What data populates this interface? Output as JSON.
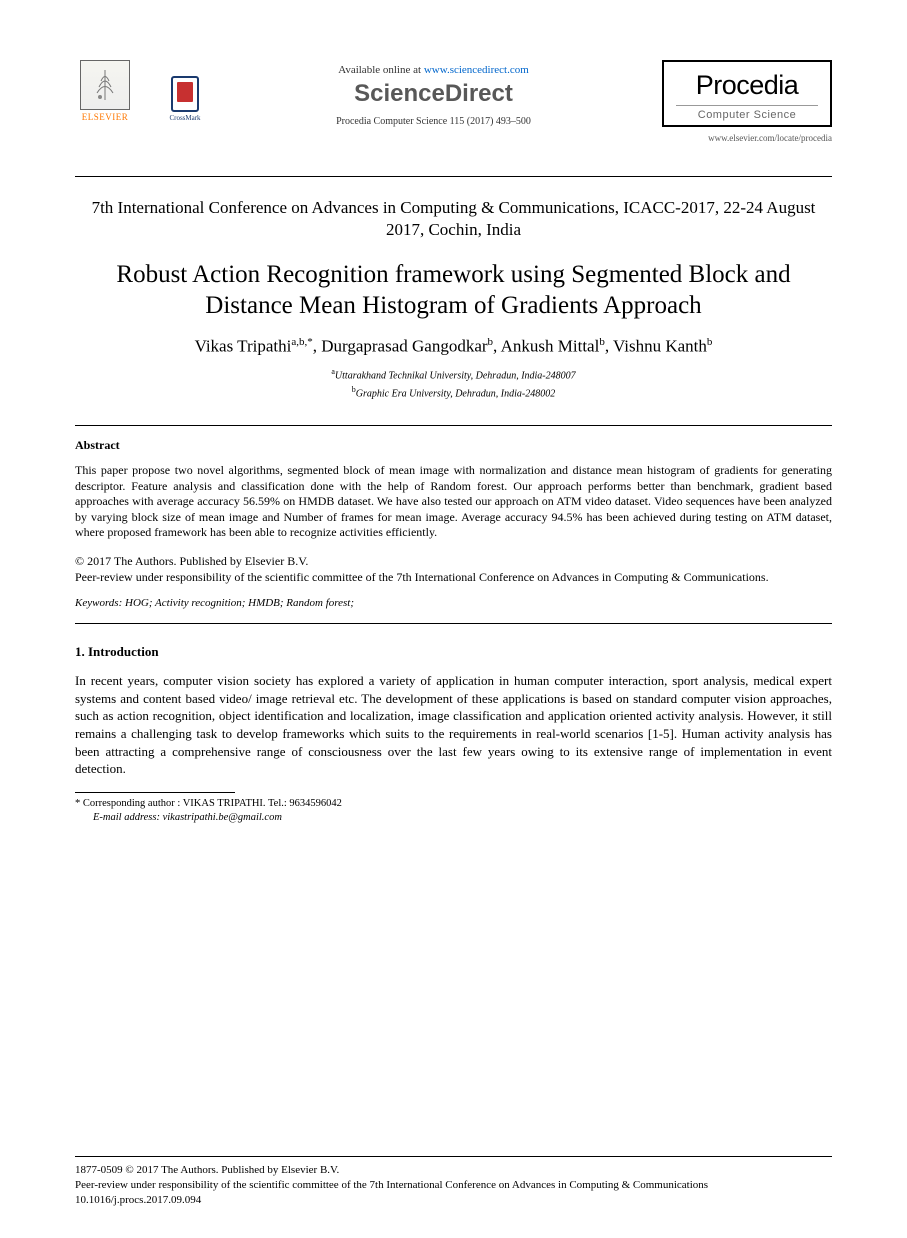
{
  "header": {
    "elsevier_label": "ELSEVIER",
    "crossmark_label": "CrossMark",
    "available_prefix": "Available online at ",
    "available_url": "www.sciencedirect.com",
    "sciencedirect": "ScienceDirect",
    "publication_line": "Procedia Computer Science 115 (2017) 493–500",
    "procedia_title": "Procedia",
    "procedia_subtitle": "Computer Science",
    "journal_url": "www.elsevier.com/locate/procedia"
  },
  "conference": "7th International Conference on Advances in Computing & Communications, ICACC-2017, 22-24 August 2017, Cochin, India",
  "title": "Robust Action Recognition framework using Segmented Block and Distance Mean Histogram of Gradients Approach",
  "authors_html": "Vikas Tripathi<sup>a,b,*</sup>, Durgaprasad Gangodkar<sup>b</sup>, Ankush Mittal<sup>b</sup>, Vishnu Kanth<sup>b</sup>",
  "affiliations": {
    "a": "Uttarakhand Technikal University, Dehradun, India-248007",
    "b": "Graphic Era University, Dehradun, India-248002"
  },
  "abstract": {
    "heading": "Abstract",
    "body": "This paper propose two novel algorithms, segmented block of mean image with normalization and distance mean histogram of gradients for generating descriptor. Feature analysis and classification done with the help of Random forest. Our approach performs better than benchmark, gradient based approaches with average accuracy 56.59% on HMDB dataset. We have also tested our approach on ATM video dataset. Video sequences have been analyzed by varying block size of mean image and Number of frames for mean image. Average accuracy 94.5% has been achieved during testing on ATM dataset, where proposed framework has been able to recognize activities efficiently."
  },
  "copyright": {
    "line1": "© 2017 The Authors. Published by Elsevier B.V.",
    "line2": "Peer-review under responsibility of the scientific committee of the 7th International Conference on Advances in Computing & Communications."
  },
  "keywords": {
    "label": "Keywords:",
    "text": "HOG; Activity recognition; HMDB; Random forest;"
  },
  "introduction": {
    "heading": "1. Introduction",
    "body": "In recent years, computer vision society has explored a variety of application in human computer interaction, sport analysis, medical expert systems and content based video/ image retrieval etc. The development of these applications is based on standard computer vision approaches, such as action recognition, object identification and localization, image classification and application oriented activity analysis. However, it still remains a challenging task to develop frameworks which suits to the requirements in real-world scenarios [1-5]. Human activity analysis has been attracting a comprehensive range of consciousness over the last few years owing to its extensive range of implementation in event detection."
  },
  "footnote": {
    "line1": "* Corresponding author : VIKAS TRIPATHI. Tel.: 9634596042",
    "email_label": "E-mail address:",
    "email": "vikastripathi.be@gmail.com"
  },
  "footer": {
    "issn_line": "1877-0509 © 2017 The Authors. Published by Elsevier B.V.",
    "peer_line": "Peer-review under responsibility of the scientific committee of the 7th International Conference on Advances in Computing & Communications",
    "doi": "10.1016/j.procs.2017.09.094"
  },
  "colors": {
    "text": "#000000",
    "link": "#0066cc",
    "elsevier_orange": "#ff7700",
    "background": "#ffffff",
    "crossmark_border": "#1a3a6e",
    "crossmark_fill": "#c73030"
  },
  "fonts": {
    "body_family": "Times New Roman",
    "title_size_pt": 19,
    "conference_size_pt": 13,
    "authors_size_pt": 13,
    "abstract_size_pt": 9,
    "intro_size_pt": 10
  }
}
